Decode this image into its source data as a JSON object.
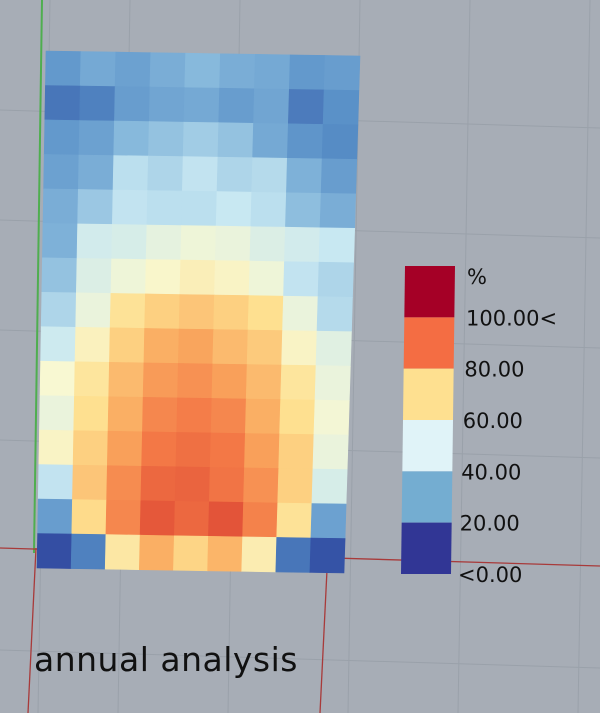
{
  "caption": "annual analysis",
  "chart_data": {
    "type": "heatmap",
    "rows": 15,
    "cols": 9,
    "unit_label": "%",
    "legend": {
      "unit": "%",
      "labels": [
        "100.00<",
        "80.00",
        "60.00",
        "40.00",
        "20.00",
        "<0.00"
      ],
      "bands": [
        {
          "range": ">100",
          "color": "#a50026"
        },
        {
          "range": "80-100",
          "color": "#f46d43"
        },
        {
          "range": "60-80",
          "color": "#fee090"
        },
        {
          "range": "40-60",
          "color": "#e0f3f8"
        },
        {
          "range": "20-40",
          "color": "#74add1"
        },
        {
          "range": "<20",
          "color": "#313695"
        }
      ]
    },
    "values": [
      [
        27,
        31,
        29,
        32,
        35,
        32,
        31,
        27,
        28
      ],
      [
        20,
        22,
        28,
        30,
        31,
        28,
        30,
        21,
        25
      ],
      [
        27,
        29,
        35,
        37,
        39,
        37,
        31,
        26,
        24
      ],
      [
        29,
        32,
        43,
        41,
        44,
        41,
        42,
        33,
        28
      ],
      [
        32,
        38,
        44,
        43,
        43,
        45,
        43,
        36,
        32
      ],
      [
        33,
        47,
        48,
        51,
        53,
        52,
        49,
        47,
        45
      ],
      [
        37,
        49,
        53,
        56,
        59,
        57,
        53,
        44,
        41
      ],
      [
        41,
        52,
        64,
        68,
        70,
        68,
        65,
        52,
        42
      ],
      [
        46,
        58,
        68,
        74,
        76,
        72,
        69,
        57,
        50
      ],
      [
        55,
        63,
        72,
        78,
        80,
        77,
        72,
        63,
        52
      ],
      [
        52,
        65,
        74,
        82,
        84,
        82,
        74,
        65,
        54
      ],
      [
        57,
        68,
        77,
        85,
        87,
        85,
        77,
        68,
        52
      ],
      [
        44,
        70,
        81,
        89,
        90,
        86,
        80,
        68,
        48
      ],
      [
        28,
        66,
        82,
        93,
        89,
        94,
        83,
        64,
        29
      ],
      [
        10,
        22,
        62,
        74,
        67,
        73,
        60,
        20,
        12
      ]
    ]
  }
}
